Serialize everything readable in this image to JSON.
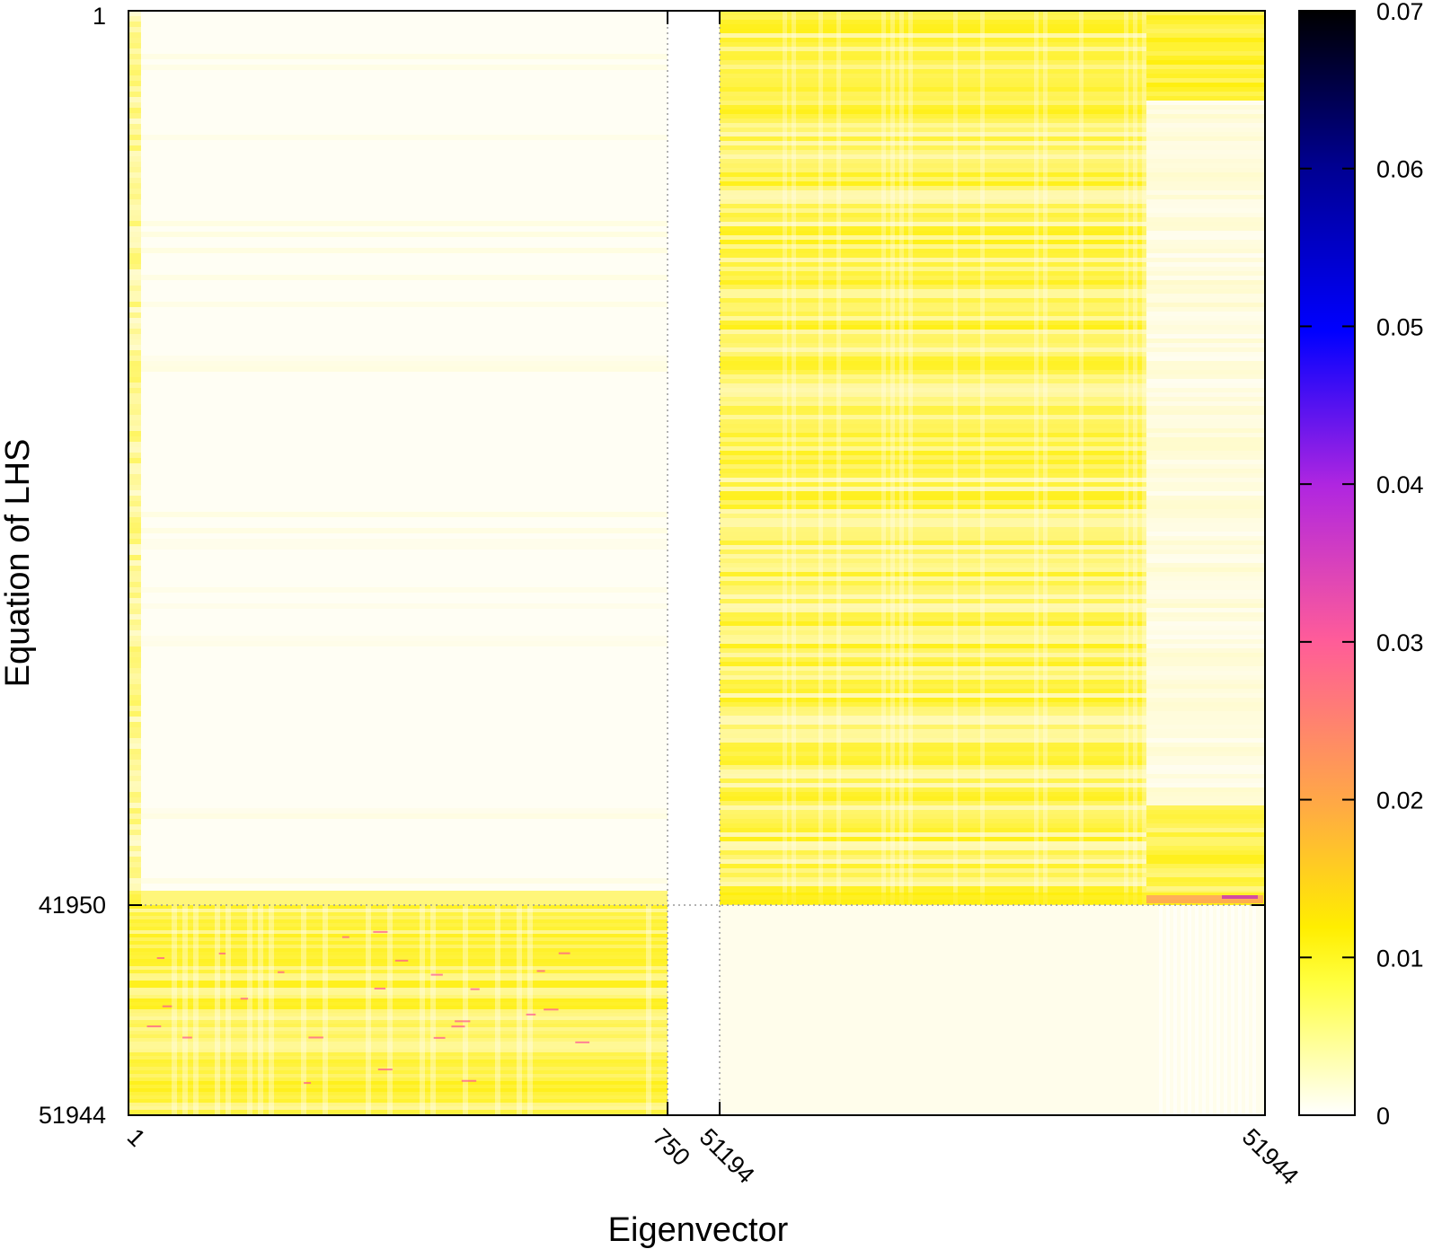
{
  "chart_data": {
    "type": "heatmap",
    "title": "",
    "xlabel": "Eigenvector",
    "ylabel": "Equation of LHS",
    "x_ticks": [
      "1",
      "750",
      "51194",
      "51944"
    ],
    "y_ticks": [
      "1",
      "41950",
      "51944"
    ],
    "colorbar": {
      "ticks": [
        "0",
        "0.01",
        "0.02",
        "0.03",
        "0.04",
        "0.05",
        "0.06",
        "0.07"
      ],
      "range": [
        0,
        0.07
      ],
      "palette": [
        "#ffffff",
        "#ffff00",
        "#ff9a4f",
        "#ff4fa0",
        "#a020f0",
        "#0000ff",
        "#000080",
        "#000000"
      ]
    },
    "grid": false,
    "legend": "right",
    "separators": {
      "x": [
        "750",
        "51194"
      ],
      "y": [
        "41950"
      ],
      "style": "dotted"
    },
    "blocks": [
      {
        "x_range": [
          "1",
          "750"
        ],
        "y_range": [
          "1",
          "41950"
        ],
        "level": 0.0005,
        "note": "near-zero"
      },
      {
        "x_range": [
          "1",
          "750"
        ],
        "y_range": [
          "41950",
          "51944"
        ],
        "level": 0.006
      },
      {
        "x_range": [
          "51194",
          "51944"
        ],
        "y_range": [
          "1",
          "41950"
        ],
        "level": 0.005
      },
      {
        "x_range": [
          "51194",
          "51944"
        ],
        "y_range": [
          "41950",
          "51944"
        ],
        "level": 0.0008
      }
    ]
  }
}
